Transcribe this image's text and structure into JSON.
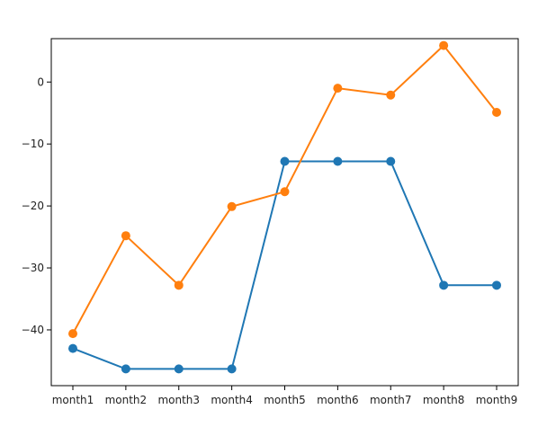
{
  "chart_data": {
    "type": "line",
    "title": "",
    "xlabel": "",
    "ylabel": "",
    "categories": [
      "month1",
      "month2",
      "month3",
      "month4",
      "month5",
      "month6",
      "month7",
      "month8",
      "month9"
    ],
    "ylim": [
      -49,
      7
    ],
    "yticks": [
      0,
      -10,
      -20,
      -30,
      -40
    ],
    "grid": false,
    "legend": "none",
    "series": [
      {
        "color": "#1f77b4",
        "values": [
          -43,
          -46.3,
          -46.3,
          -46.3,
          -12.8,
          -12.8,
          -12.8,
          -32.8,
          -32.8
        ]
      },
      {
        "color": "#ff7f0e",
        "values": [
          -40.6,
          -24.8,
          -32.8,
          -20.1,
          -17.7,
          -1,
          -2.1,
          5.9,
          -4.9
        ]
      }
    ]
  }
}
